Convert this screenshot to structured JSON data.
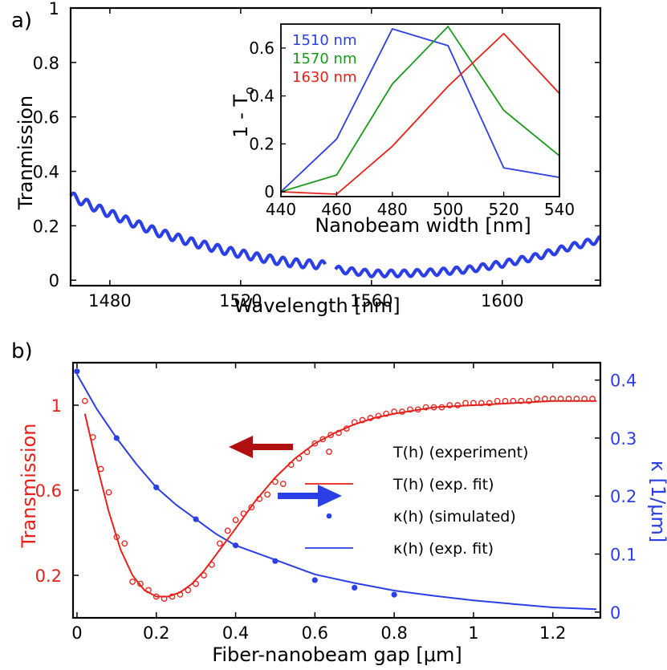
{
  "panel_a_label": "a)",
  "panel_b_label": "b)",
  "colors": {
    "blue": "#2b3fe6",
    "green": "#1a9a1a",
    "red": "#e8211a",
    "dark_red": "#b01010",
    "axis_blue": "#2b3fe6"
  },
  "chart_data": [
    {
      "id": "panel-a-main",
      "type": "line",
      "title": "",
      "xlabel": "Wavelength [nm]",
      "ylabel": "Tranmission",
      "xlim": [
        1468,
        1630
      ],
      "ylim": [
        -0.02,
        1.0
      ],
      "x_ticks": [
        1480,
        1520,
        1560,
        1600
      ],
      "x_tick_labels": [
        "1480",
        "1520",
        "1560",
        "1600"
      ],
      "y_ticks": [
        0,
        0.2,
        0.4,
        0.6,
        0.8,
        1
      ],
      "y_tick_labels": [
        "0",
        "0.2",
        "0.4",
        "0.6",
        "0.8",
        "1"
      ],
      "series": [
        {
          "name": "transmission-segment-1",
          "x": [
            1468,
            1475,
            1485,
            1495,
            1505,
            1515,
            1525,
            1535,
            1546
          ],
          "y": [
            0.31,
            0.27,
            0.22,
            0.175,
            0.14,
            0.11,
            0.085,
            0.065,
            0.055
          ],
          "ripple_amplitude": 0.015,
          "ripple_period_nm": 4
        },
        {
          "name": "transmission-segment-2",
          "x": [
            1549,
            1560,
            1570,
            1580,
            1590,
            1600,
            1610,
            1620,
            1630
          ],
          "y": [
            0.04,
            0.025,
            0.025,
            0.03,
            0.04,
            0.06,
            0.085,
            0.12,
            0.15
          ],
          "ripple_amplitude": 0.012,
          "ripple_period_nm": 4
        }
      ]
    },
    {
      "id": "panel-a-inset",
      "type": "line",
      "xlabel": "Nanobeam width [nm]",
      "ylabel": "1 - T",
      "ylabel_subscript": "o",
      "xlim": [
        440,
        540
      ],
      "ylim": [
        -0.02,
        0.7
      ],
      "x_ticks": [
        440,
        460,
        480,
        500,
        520,
        540
      ],
      "x_tick_labels": [
        "440",
        "460",
        "480",
        "500",
        "520",
        "540"
      ],
      "y_ticks": [
        0,
        0.2,
        0.4,
        0.6
      ],
      "y_tick_labels": [
        "0",
        "0.2",
        "0.4",
        "0.6"
      ],
      "categories": [
        440,
        460,
        480,
        500,
        520,
        540
      ],
      "series": [
        {
          "name": "1510 nm",
          "color": "#2b3fe6",
          "values": [
            0.0,
            0.22,
            0.68,
            0.61,
            0.1,
            0.06
          ]
        },
        {
          "name": "1570 nm",
          "color": "#1a9a1a",
          "values": [
            0.0,
            0.07,
            0.45,
            0.69,
            0.34,
            0.15
          ]
        },
        {
          "name": "1630 nm",
          "color": "#e8211a",
          "values": [
            0.0,
            -0.01,
            0.19,
            0.44,
            0.66,
            0.41
          ]
        }
      ],
      "legend": [
        "1510 nm",
        "1570 nm",
        "1630 nm"
      ]
    },
    {
      "id": "panel-b",
      "type": "line",
      "xlabel": "Fiber-nanobeam gap [μm]",
      "ylabel_left": "Transmission",
      "ylabel_right": "κ [1/μm]",
      "xlim": [
        -0.01,
        1.32
      ],
      "ylim_left": [
        0.0,
        1.2
      ],
      "ylim_right": [
        -0.01,
        0.43
      ],
      "x_ticks": [
        0,
        0.2,
        0.4,
        0.6,
        0.8,
        1,
        1.2
      ],
      "x_tick_labels": [
        "0",
        "0.2",
        "0.4",
        "0.6",
        "0.8",
        "1",
        "1.2"
      ],
      "y_left_ticks": [
        0.2,
        0.6,
        1.0
      ],
      "y_left_tick_labels": [
        "0.2",
        "0.6",
        "1"
      ],
      "y_right_ticks": [
        0,
        0.1,
        0.2,
        0.3,
        0.4
      ],
      "y_right_tick_labels": [
        "0",
        "0.1",
        "0.2",
        "0.3",
        "0.4"
      ],
      "legend": [
        {
          "label": "T(h) (experiment)",
          "style": "open-circle",
          "color": "#e8211a"
        },
        {
          "label": "T(h) (exp. fit)",
          "style": "line",
          "color": "#e8211a"
        },
        {
          "label": "κ(h) (simulated)",
          "style": "dot",
          "color": "#2b3fe6"
        },
        {
          "label": "κ(h) (exp. fit)",
          "style": "line",
          "color": "#2b3fe6"
        }
      ],
      "series": [
        {
          "name": "T(h) (experiment)",
          "axis": "left",
          "x": [
            0.02,
            0.04,
            0.06,
            0.08,
            0.1,
            0.12,
            0.14,
            0.16,
            0.18,
            0.2,
            0.22,
            0.24,
            0.26,
            0.28,
            0.3,
            0.32,
            0.34,
            0.36,
            0.38,
            0.4,
            0.42,
            0.44,
            0.46,
            0.48,
            0.5,
            0.52,
            0.54,
            0.56,
            0.58,
            0.6,
            0.62,
            0.64,
            0.66,
            0.68,
            0.7,
            0.72,
            0.74,
            0.76,
            0.78,
            0.8,
            0.82,
            0.84,
            0.86,
            0.88,
            0.9,
            0.92,
            0.94,
            0.96,
            0.98,
            1.0,
            1.02,
            1.04,
            1.06,
            1.08,
            1.1,
            1.12,
            1.14,
            1.16,
            1.18,
            1.2,
            1.22,
            1.24,
            1.26,
            1.28,
            1.3
          ],
          "y": [
            1.02,
            0.85,
            0.7,
            0.59,
            0.38,
            0.35,
            0.17,
            0.16,
            0.13,
            0.1,
            0.09,
            0.1,
            0.11,
            0.13,
            0.16,
            0.2,
            0.25,
            0.35,
            0.41,
            0.46,
            0.49,
            0.52,
            0.56,
            0.58,
            0.64,
            0.63,
            0.72,
            0.75,
            0.78,
            0.82,
            0.84,
            0.86,
            0.87,
            0.89,
            0.92,
            0.93,
            0.94,
            0.95,
            0.96,
            0.97,
            0.97,
            0.98,
            0.98,
            0.99,
            0.99,
            0.99,
            1.0,
            1.0,
            1.01,
            1.01,
            1.01,
            1.01,
            1.02,
            1.02,
            1.02,
            1.02,
            1.02,
            1.03,
            1.03,
            1.03,
            1.03,
            1.03,
            1.03,
            1.03,
            1.03
          ]
        },
        {
          "name": "T(h) (exp. fit)",
          "axis": "left",
          "x": [
            0.02,
            0.05,
            0.08,
            0.11,
            0.14,
            0.17,
            0.2,
            0.23,
            0.26,
            0.29,
            0.32,
            0.36,
            0.4,
            0.45,
            0.5,
            0.55,
            0.6,
            0.65,
            0.7,
            0.75,
            0.8,
            0.9,
            1.0,
            1.1,
            1.2,
            1.31
          ],
          "y": [
            0.96,
            0.72,
            0.5,
            0.32,
            0.2,
            0.13,
            0.1,
            0.1,
            0.12,
            0.16,
            0.22,
            0.32,
            0.42,
            0.55,
            0.66,
            0.75,
            0.82,
            0.87,
            0.91,
            0.94,
            0.96,
            0.99,
            1.0,
            1.01,
            1.02,
            1.02
          ]
        },
        {
          "name": "κ(h) (simulated)",
          "axis": "right",
          "x": [
            0.0,
            0.1,
            0.2,
            0.3,
            0.4,
            0.5,
            0.6,
            0.7,
            0.8
          ],
          "y": [
            0.415,
            0.3,
            0.215,
            0.16,
            0.115,
            0.088,
            0.055,
            0.042,
            0.03
          ]
        },
        {
          "name": "κ(h) (exp. fit)",
          "axis": "right",
          "x": [
            0.0,
            0.05,
            0.1,
            0.15,
            0.2,
            0.25,
            0.3,
            0.35,
            0.4,
            0.5,
            0.6,
            0.7,
            0.8,
            0.9,
            1.0,
            1.1,
            1.2,
            1.31
          ],
          "y": [
            0.41,
            0.35,
            0.3,
            0.255,
            0.215,
            0.185,
            0.16,
            0.135,
            0.115,
            0.09,
            0.065,
            0.05,
            0.037,
            0.028,
            0.02,
            0.014,
            0.008,
            0.005
          ]
        }
      ],
      "annotations": [
        {
          "type": "arrow",
          "direction": "left",
          "color": "#b01010",
          "meaning": "left axis"
        },
        {
          "type": "arrow",
          "direction": "right",
          "color": "#2b3fe6",
          "meaning": "right axis"
        }
      ]
    }
  ]
}
